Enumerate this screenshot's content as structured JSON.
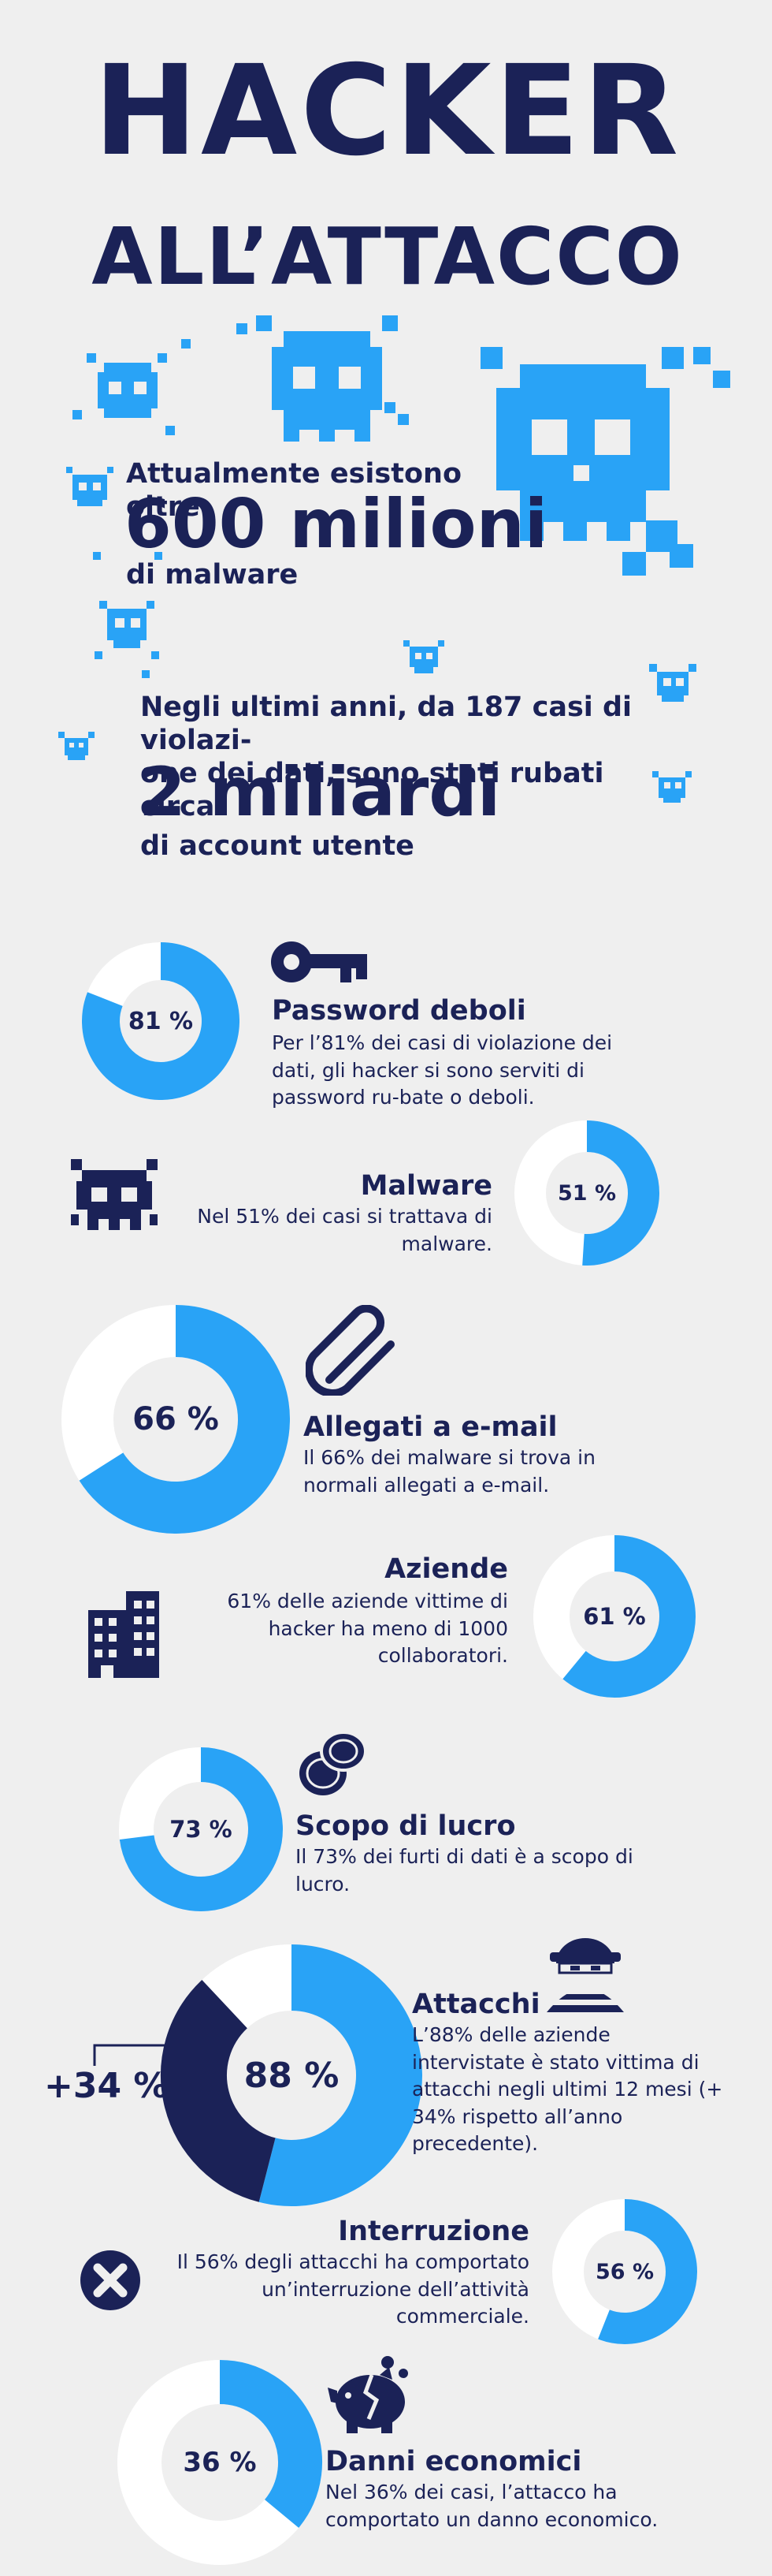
{
  "header": {
    "title_line1": "HACKER",
    "title_line2": "ALL’ATTACCO"
  },
  "intro": {
    "malware_pre": "Attualmente esistono oltre",
    "malware_big": "600 milioni",
    "malware_post": "di malware",
    "accounts_pre": "Negli ultimi anni, da 187 casi di violazi-\none dei dati, sono stati rubati circa",
    "accounts_big": "2 miliardi",
    "accounts_post": "di account utente"
  },
  "colors": {
    "background": "#efefef",
    "navy": "#1b2257",
    "blue": "#29a3f6",
    "white": "#ffffff"
  },
  "stats": [
    {
      "label": "81 %",
      "percent": 81,
      "title": "Password deboli",
      "desc": "Per l’81% dei casi di violazione dei dati, gli hacker si sono serviti di password ru-bate o deboli.",
      "icon": "key-icon"
    },
    {
      "label": "51 %",
      "percent": 51,
      "title": "Malware",
      "desc": "Nel 51% dei casi si trattava di malware.",
      "icon": "skull-icon"
    },
    {
      "label": "66 %",
      "percent": 66,
      "title": "Allegati a e-mail",
      "desc": "Il 66% dei malware si trova in normali allegati a e-mail.",
      "icon": "paperclip-icon"
    },
    {
      "label": "61 %",
      "percent": 61,
      "title": "Aziende",
      "desc": "61% delle aziende vittime di hacker ha meno di 1000 collaboratori.",
      "icon": "building-icon"
    },
    {
      "label": "73 %",
      "percent": 73,
      "title": "Scopo di lucro",
      "desc": "Il 73% dei furti di dati è a scopo di lucro.",
      "icon": "coins-icon"
    },
    {
      "label": "88 %",
      "percent": 88,
      "increase_percent": 34,
      "increase_label": "+34 %",
      "title": "Attacchi",
      "desc": "L’88% delle aziende intervistate è stato vittima di attacchi negli ultimi 12 mesi (+ 34% rispetto all’anno precedente).",
      "icon": "burglar-icon"
    },
    {
      "label": "56 %",
      "percent": 56,
      "title": "Interruzione",
      "desc": "Il 56% degli attacchi ha comportato un’interruzione dell’attività commerciale.",
      "icon": "cross-icon"
    },
    {
      "label": "36 %",
      "percent": 36,
      "title": "Danni economici",
      "desc": "Nel 36% dei casi, l’attacco ha comportato un danno economico.",
      "icon": "broken-piggy-bank-icon"
    }
  ]
}
